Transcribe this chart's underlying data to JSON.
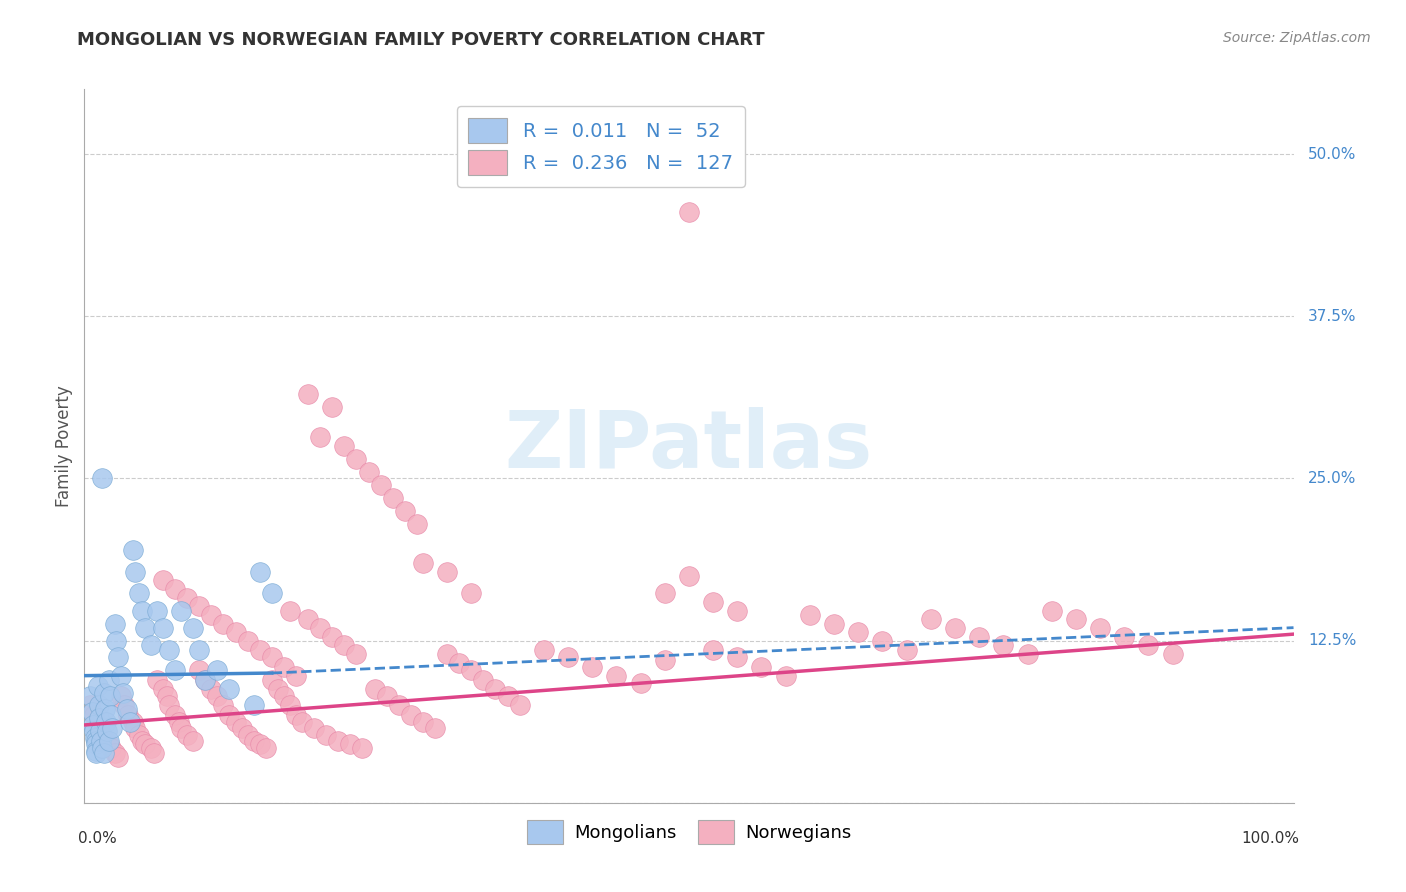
{
  "title": "MONGOLIAN VS NORWEGIAN FAMILY POVERTY CORRELATION CHART",
  "source": "Source: ZipAtlas.com",
  "ylabel": "Family Poverty",
  "ytick_values": [
    0.0,
    0.125,
    0.25,
    0.375,
    0.5
  ],
  "ytick_labels": [
    "",
    "12.5%",
    "25.0%",
    "37.5%",
    "50.0%"
  ],
  "xlim": [
    0.0,
    1.0
  ],
  "ylim": [
    0.0,
    0.55
  ],
  "legend_mongolian_R": "0.011",
  "legend_mongolian_N": "52",
  "legend_norwegian_R": "0.236",
  "legend_norwegian_N": "127",
  "mongolian_color": "#a8c8ee",
  "mongolian_edge_color": "#7aaad4",
  "norwegian_color": "#f4b0c0",
  "norwegian_edge_color": "#e888a8",
  "mongolian_line_color": "#4488cc",
  "norwegian_line_color": "#dd4488",
  "tick_label_color": "#4488cc",
  "background_color": "#ffffff",
  "grid_color": "#cccccc",
  "title_color": "#333333",
  "source_color": "#888888",
  "ylabel_color": "#555555",
  "watermark_color": "#cce4f4",
  "mongolian_x": [
    0.005,
    0.006,
    0.007,
    0.008,
    0.009,
    0.01,
    0.01,
    0.01,
    0.01,
    0.011,
    0.012,
    0.012,
    0.013,
    0.014,
    0.015,
    0.015,
    0.016,
    0.016,
    0.017,
    0.018,
    0.019,
    0.02,
    0.02,
    0.021,
    0.022,
    0.023,
    0.025,
    0.026,
    0.028,
    0.03,
    0.032,
    0.035,
    0.038,
    0.04,
    0.042,
    0.045,
    0.048,
    0.05,
    0.055,
    0.06,
    0.065,
    0.07,
    0.075,
    0.08,
    0.09,
    0.095,
    0.1,
    0.11,
    0.12,
    0.14,
    0.145,
    0.155
  ],
  "mongolian_y": [
    0.082,
    0.07,
    0.06,
    0.055,
    0.05,
    0.048,
    0.045,
    0.04,
    0.038,
    0.09,
    0.075,
    0.065,
    0.055,
    0.048,
    0.042,
    0.25,
    0.038,
    0.085,
    0.072,
    0.062,
    0.055,
    0.048,
    0.095,
    0.082,
    0.068,
    0.058,
    0.138,
    0.125,
    0.112,
    0.098,
    0.085,
    0.072,
    0.062,
    0.195,
    0.178,
    0.162,
    0.148,
    0.135,
    0.122,
    0.148,
    0.135,
    0.118,
    0.102,
    0.148,
    0.135,
    0.118,
    0.095,
    0.102,
    0.088,
    0.075,
    0.178,
    0.162
  ],
  "norwegian_x": [
    0.005,
    0.008,
    0.01,
    0.012,
    0.015,
    0.018,
    0.02,
    0.022,
    0.025,
    0.028,
    0.03,
    0.033,
    0.036,
    0.04,
    0.042,
    0.045,
    0.048,
    0.05,
    0.055,
    0.058,
    0.06,
    0.065,
    0.068,
    0.07,
    0.075,
    0.078,
    0.08,
    0.085,
    0.09,
    0.095,
    0.1,
    0.105,
    0.11,
    0.115,
    0.12,
    0.125,
    0.13,
    0.135,
    0.14,
    0.145,
    0.15,
    0.155,
    0.16,
    0.165,
    0.17,
    0.175,
    0.18,
    0.19,
    0.2,
    0.21,
    0.22,
    0.23,
    0.24,
    0.25,
    0.26,
    0.27,
    0.28,
    0.29,
    0.3,
    0.31,
    0.32,
    0.33,
    0.34,
    0.35,
    0.36,
    0.38,
    0.4,
    0.42,
    0.44,
    0.46,
    0.48,
    0.5,
    0.52,
    0.54,
    0.56,
    0.58,
    0.6,
    0.62,
    0.64,
    0.66,
    0.68,
    0.7,
    0.72,
    0.74,
    0.76,
    0.78,
    0.8,
    0.82,
    0.84,
    0.86,
    0.88,
    0.9,
    0.48,
    0.52,
    0.54,
    0.28,
    0.3,
    0.32,
    0.17,
    0.185,
    0.195,
    0.205,
    0.215,
    0.225,
    0.065,
    0.075,
    0.085,
    0.095,
    0.105,
    0.115,
    0.125,
    0.135,
    0.145,
    0.155,
    0.165,
    0.175,
    0.185,
    0.195,
    0.205,
    0.215,
    0.225,
    0.235,
    0.245,
    0.255,
    0.265,
    0.275,
    0.5
  ],
  "norwegian_y": [
    0.075,
    0.068,
    0.062,
    0.058,
    0.052,
    0.048,
    0.045,
    0.042,
    0.038,
    0.035,
    0.082,
    0.075,
    0.068,
    0.062,
    0.058,
    0.052,
    0.048,
    0.045,
    0.042,
    0.038,
    0.095,
    0.088,
    0.082,
    0.075,
    0.068,
    0.062,
    0.058,
    0.052,
    0.048,
    0.102,
    0.095,
    0.088,
    0.082,
    0.075,
    0.068,
    0.062,
    0.058,
    0.052,
    0.048,
    0.045,
    0.042,
    0.095,
    0.088,
    0.082,
    0.075,
    0.068,
    0.062,
    0.058,
    0.052,
    0.048,
    0.045,
    0.042,
    0.088,
    0.082,
    0.075,
    0.068,
    0.062,
    0.058,
    0.115,
    0.108,
    0.102,
    0.095,
    0.088,
    0.082,
    0.075,
    0.118,
    0.112,
    0.105,
    0.098,
    0.092,
    0.11,
    0.175,
    0.118,
    0.112,
    0.105,
    0.098,
    0.145,
    0.138,
    0.132,
    0.125,
    0.118,
    0.142,
    0.135,
    0.128,
    0.122,
    0.115,
    0.148,
    0.142,
    0.135,
    0.128,
    0.122,
    0.115,
    0.162,
    0.155,
    0.148,
    0.185,
    0.178,
    0.162,
    0.148,
    0.142,
    0.135,
    0.128,
    0.122,
    0.115,
    0.172,
    0.165,
    0.158,
    0.152,
    0.145,
    0.138,
    0.132,
    0.125,
    0.118,
    0.112,
    0.105,
    0.098,
    0.315,
    0.282,
    0.305,
    0.275,
    0.265,
    0.255,
    0.245,
    0.235,
    0.225,
    0.215,
    0.455
  ]
}
